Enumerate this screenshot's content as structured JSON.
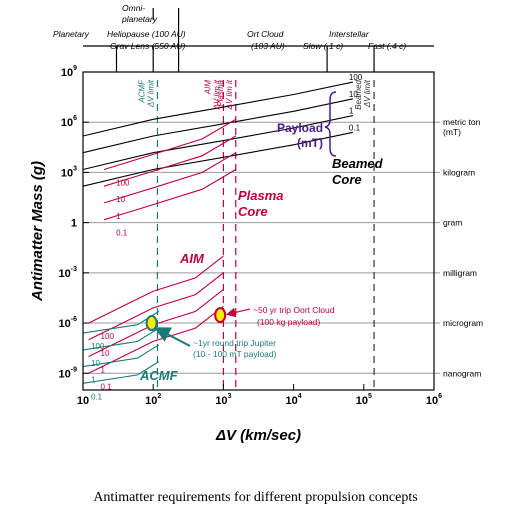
{
  "chart_data": {
    "type": "line",
    "xlabel": "ΔV (km/sec)",
    "ylabel": "Antimatter Mass (g)",
    "x_scale": "log",
    "y_scale": "log",
    "xlim": [
      10,
      1000000
    ],
    "ylim": [
      1e-10,
      1000000000.0
    ],
    "x_ticks": [
      {
        "value": 10,
        "label": "10"
      },
      {
        "value": 100,
        "label": "10^2"
      },
      {
        "value": 1000,
        "label": "10^3"
      },
      {
        "value": 10000,
        "label": "10^4"
      },
      {
        "value": 100000,
        "label": "10^5"
      },
      {
        "value": 1000000,
        "label": "10^6"
      }
    ],
    "y_ticks": [
      {
        "value": 1000000000.0,
        "label": "10^9"
      },
      {
        "value": 1000000.0,
        "label": "10^6"
      },
      {
        "value": 1000.0,
        "label": "10^3"
      },
      {
        "value": 1,
        "label": "1"
      },
      {
        "value": 0.001,
        "label": "10^-3"
      },
      {
        "value": 1e-06,
        "label": "10^-6"
      },
      {
        "value": 1e-09,
        "label": "10^-9"
      }
    ],
    "mass_units": [
      {
        "value": 1000000.0,
        "line1": "metric ton",
        "line2": "(mT)"
      },
      {
        "value": 1000.0,
        "line1": "kilogram",
        "line2": ""
      },
      {
        "value": 1,
        "line1": "gram",
        "line2": ""
      },
      {
        "value": 0.001,
        "line1": "milligram",
        "line2": ""
      },
      {
        "value": 1e-06,
        "line1": "microgram",
        "line2": ""
      },
      {
        "value": 1e-09,
        "line1": "nanogram",
        "line2": ""
      }
    ],
    "missions": [
      {
        "label": "Planetary",
        "line2": "",
        "x": 30
      },
      {
        "label": "Heliopause (100 AU)",
        "line2": "Grav Lens (550 AU)",
        "x": 100
      },
      {
        "label": "Ort Cloud",
        "line2": "(103 AU)",
        "x": 230
      },
      {
        "label": "Interstellar",
        "line2": "Slow (.1 c)",
        "x": 30000
      },
      {
        "label": "Fast (.4 c)",
        "line2": "",
        "x": 140000
      }
    ],
    "mission_header_top": [
      "Omni-",
      "planetary"
    ],
    "limits": [
      {
        "name": "ACMF",
        "line1": "ACMF",
        "line2": "ΔV limit",
        "x": 115,
        "color": "#1a7a7a"
      },
      {
        "name": "AIM",
        "line1": "AIM",
        "line2": "ΔV lim it",
        "x": 1000,
        "color": "#c0003a"
      },
      {
        "name": "Plasma",
        "line1": "Plasma",
        "line2": "ΔV lim it",
        "x": 1500,
        "color": "#c0003a"
      },
      {
        "name": "Beamed",
        "line1": "Beamed",
        "line2": "ΔV limit",
        "x": 140000,
        "color": "#333333"
      }
    ],
    "groups": [
      {
        "name": "Beamed Core",
        "color": "#000000",
        "series": [
          {
            "payload_label": "100",
            "points": [
              [
                10,
                150000
              ],
              [
                100,
                1500000
              ],
              [
                1000,
                8000000
              ],
              [
                10000,
                45000000
              ],
              [
                70000,
                250000000
              ]
            ]
          },
          {
            "payload_label": "10",
            "points": [
              [
                10,
                15000
              ],
              [
                100,
                150000
              ],
              [
                1000,
                800000
              ],
              [
                10000,
                4500000
              ],
              [
                70000,
                25000000
              ]
            ]
          },
          {
            "payload_label": "1",
            "points": [
              [
                10,
                1500
              ],
              [
                100,
                15000
              ],
              [
                1000,
                80000
              ],
              [
                10000,
                450000
              ],
              [
                70000,
                2500000
              ]
            ]
          },
          {
            "payload_label": "0.1",
            "points": [
              [
                10,
                150
              ],
              [
                100,
                1500
              ],
              [
                1000,
                8000
              ],
              [
                10000,
                45000
              ],
              [
                70000,
                250000
              ]
            ]
          }
        ]
      },
      {
        "name": "Plasma Core",
        "color": "#c0003a",
        "series": [
          {
            "payload_label": "100",
            "points": [
              [
                20,
                1500
              ],
              [
                100,
                12000
              ],
              [
                500,
                100000
              ],
              [
                1500,
                1500000
              ]
            ]
          },
          {
            "payload_label": "10",
            "points": [
              [
                20,
                150
              ],
              [
                100,
                1200
              ],
              [
                500,
                10000
              ],
              [
                1500,
                150000
              ]
            ]
          },
          {
            "payload_label": "1",
            "points": [
              [
                20,
                15
              ],
              [
                100,
                120
              ],
              [
                500,
                1000
              ],
              [
                1500,
                15000
              ]
            ]
          },
          {
            "payload_label": "0.1",
            "points": [
              [
                20,
                1.5
              ],
              [
                100,
                12
              ],
              [
                500,
                100
              ],
              [
                1500,
                1500
              ]
            ]
          }
        ]
      },
      {
        "name": "AIM",
        "color": "#c0003a",
        "series": [
          {
            "payload_label": "100",
            "points": [
              [
                12,
                1e-06
              ],
              [
                100,
                8e-05
              ],
              [
                400,
                0.0005
              ],
              [
                1000,
                0.01
              ]
            ]
          },
          {
            "payload_label": "10",
            "points": [
              [
                12,
                1e-07
              ],
              [
                100,
                8e-06
              ],
              [
                400,
                5e-05
              ],
              [
                1000,
                0.001
              ]
            ]
          },
          {
            "payload_label": "1",
            "points": [
              [
                12,
                1e-08
              ],
              [
                100,
                8e-07
              ],
              [
                400,
                5e-06
              ],
              [
                1000,
                0.0001
              ]
            ]
          },
          {
            "payload_label": "0.1",
            "points": [
              [
                12,
                1e-09
              ],
              [
                100,
                8e-08
              ],
              [
                400,
                5e-07
              ],
              [
                1000,
                1e-05
              ]
            ]
          }
        ]
      },
      {
        "name": "ACMF",
        "color": "#1a7a7a",
        "series": [
          {
            "payload_label": "100",
            "points": [
              [
                10,
                2.5e-07
              ],
              [
                60,
                8e-07
              ],
              [
                120,
                5e-06
              ]
            ]
          },
          {
            "payload_label": "10",
            "points": [
              [
                10,
                2.5e-08
              ],
              [
                60,
                8e-08
              ],
              [
                120,
                5e-07
              ]
            ]
          },
          {
            "payload_label": "1",
            "points": [
              [
                10,
                2.5e-09
              ],
              [
                60,
                8e-09
              ],
              [
                120,
                5e-08
              ]
            ]
          },
          {
            "payload_label": "0.1",
            "points": [
              [
                10,
                2.5e-10
              ],
              [
                60,
                8e-10
              ],
              [
                120,
                5e-09
              ]
            ]
          }
        ]
      }
    ],
    "region_labels": [
      {
        "text": "Beamed",
        "line2": "Core",
        "color": "#000000"
      },
      {
        "text": "Plasma",
        "line2": "Core",
        "color": "#c0003a"
      },
      {
        "text": "AIM",
        "line2": "",
        "color": "#c0003a"
      },
      {
        "text": "ACMF",
        "line2": "",
        "color": "#1a7a7a"
      }
    ],
    "payload_legend": {
      "line1": "Payload",
      "line2": "(mT)",
      "color": "#4b1a8a"
    },
    "annotations": [
      {
        "name": "oort",
        "line1": "~50 yr trip Oort Cloud",
        "line2": "(100 kg payload)",
        "x": 900,
        "y": 3e-06,
        "marker_color": "#ffee00",
        "edge_color": "#c0003a",
        "text_color": "#c0003a"
      },
      {
        "name": "jupiter",
        "line1": "~1yr round trip Jupiter",
        "line2": "(10 - 100 mT payload)",
        "x": 95,
        "y": 1e-06,
        "marker_color": "#ffee00",
        "edge_color": "#1a7a7a",
        "text_color": "#1a7a7a"
      }
    ]
  },
  "caption": "Antimatter requirements for different propulsion concepts"
}
